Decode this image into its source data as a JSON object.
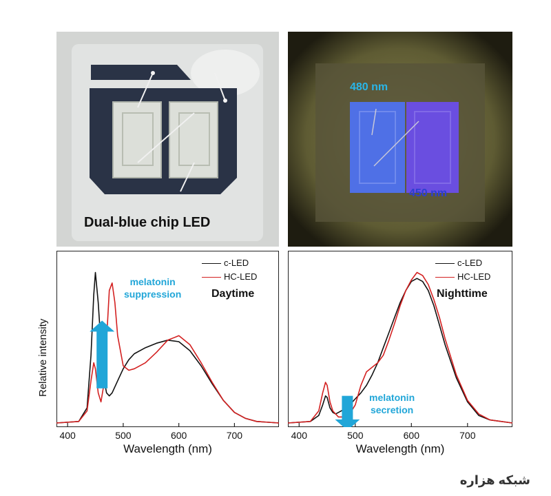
{
  "photos": {
    "left_caption": "Dual-blue chip LED",
    "chip_label_480": "480 nm",
    "chip_label_450": "450 nm"
  },
  "watermark": "شبكه هزاره",
  "colors": {
    "c_led": "#111111",
    "hc_led": "#d32020",
    "annotation": "#21a6d8"
  },
  "chart_data": [
    {
      "type": "line",
      "xlabel": "Wavelength (nm)",
      "ylabel": "Relative intensity",
      "xlim": [
        380,
        780
      ],
      "ylim": [
        0,
        1.08
      ],
      "xticks": [
        400,
        500,
        600,
        700
      ],
      "mode_label": "Daytime",
      "annotation": "melatonin\nsuppression",
      "annotation_arrow": "up",
      "legend": "top-right",
      "series": [
        {
          "name": "c-LED",
          "color": "#111111",
          "x": [
            380,
            420,
            435,
            442,
            447,
            450,
            455,
            460,
            465,
            470,
            475,
            480,
            490,
            500,
            510,
            520,
            540,
            560,
            580,
            600,
            620,
            640,
            660,
            680,
            700,
            720,
            740,
            780
          ],
          "y": [
            0.0,
            0.01,
            0.1,
            0.45,
            0.85,
            1.0,
            0.8,
            0.52,
            0.3,
            0.2,
            0.18,
            0.2,
            0.28,
            0.36,
            0.42,
            0.46,
            0.5,
            0.53,
            0.55,
            0.54,
            0.48,
            0.38,
            0.26,
            0.15,
            0.07,
            0.03,
            0.01,
            0.0
          ]
        },
        {
          "name": "HC-LED",
          "color": "#d32020",
          "x": [
            380,
            420,
            435,
            442,
            447,
            450,
            455,
            460,
            465,
            470,
            475,
            480,
            485,
            490,
            500,
            510,
            520,
            540,
            560,
            580,
            600,
            620,
            640,
            660,
            680,
            700,
            720,
            740,
            780
          ],
          "y": [
            0.0,
            0.01,
            0.08,
            0.28,
            0.4,
            0.36,
            0.2,
            0.14,
            0.25,
            0.55,
            0.88,
            0.93,
            0.8,
            0.58,
            0.38,
            0.35,
            0.36,
            0.4,
            0.47,
            0.55,
            0.58,
            0.52,
            0.4,
            0.27,
            0.15,
            0.07,
            0.03,
            0.01,
            0.0
          ]
        }
      ]
    },
    {
      "type": "line",
      "xlabel": "Wavelength (nm)",
      "ylabel": "",
      "xlim": [
        380,
        780
      ],
      "ylim": [
        0,
        1.08
      ],
      "xticks": [
        400,
        500,
        600,
        700
      ],
      "mode_label": "Nighttime",
      "annotation": "melatonin\nsecretion",
      "annotation_arrow": "down",
      "legend": "top-right",
      "series": [
        {
          "name": "c-LED",
          "color": "#111111",
          "x": [
            380,
            420,
            435,
            442,
            447,
            450,
            455,
            460,
            465,
            470,
            480,
            490,
            500,
            510,
            520,
            530,
            540,
            550,
            560,
            570,
            580,
            590,
            600,
            610,
            620,
            630,
            640,
            650,
            660,
            680,
            700,
            720,
            740,
            780
          ],
          "y": [
            0.0,
            0.01,
            0.05,
            0.12,
            0.18,
            0.17,
            0.1,
            0.07,
            0.06,
            0.07,
            0.09,
            0.12,
            0.16,
            0.2,
            0.25,
            0.32,
            0.4,
            0.5,
            0.6,
            0.7,
            0.8,
            0.88,
            0.94,
            0.96,
            0.94,
            0.88,
            0.78,
            0.65,
            0.52,
            0.3,
            0.14,
            0.05,
            0.02,
            0.0
          ]
        },
        {
          "name": "HC-LED",
          "color": "#d32020",
          "x": [
            380,
            420,
            435,
            442,
            447,
            450,
            455,
            460,
            470,
            480,
            490,
            500,
            510,
            520,
            530,
            540,
            550,
            560,
            570,
            580,
            590,
            600,
            610,
            620,
            630,
            640,
            650,
            660,
            680,
            700,
            720,
            740,
            780
          ],
          "y": [
            0.0,
            0.01,
            0.08,
            0.2,
            0.27,
            0.25,
            0.14,
            0.08,
            0.04,
            0.04,
            0.06,
            0.12,
            0.25,
            0.34,
            0.37,
            0.4,
            0.45,
            0.55,
            0.66,
            0.78,
            0.88,
            0.95,
            1.0,
            0.98,
            0.92,
            0.82,
            0.7,
            0.56,
            0.32,
            0.15,
            0.06,
            0.02,
            0.0
          ]
        }
      ]
    }
  ]
}
